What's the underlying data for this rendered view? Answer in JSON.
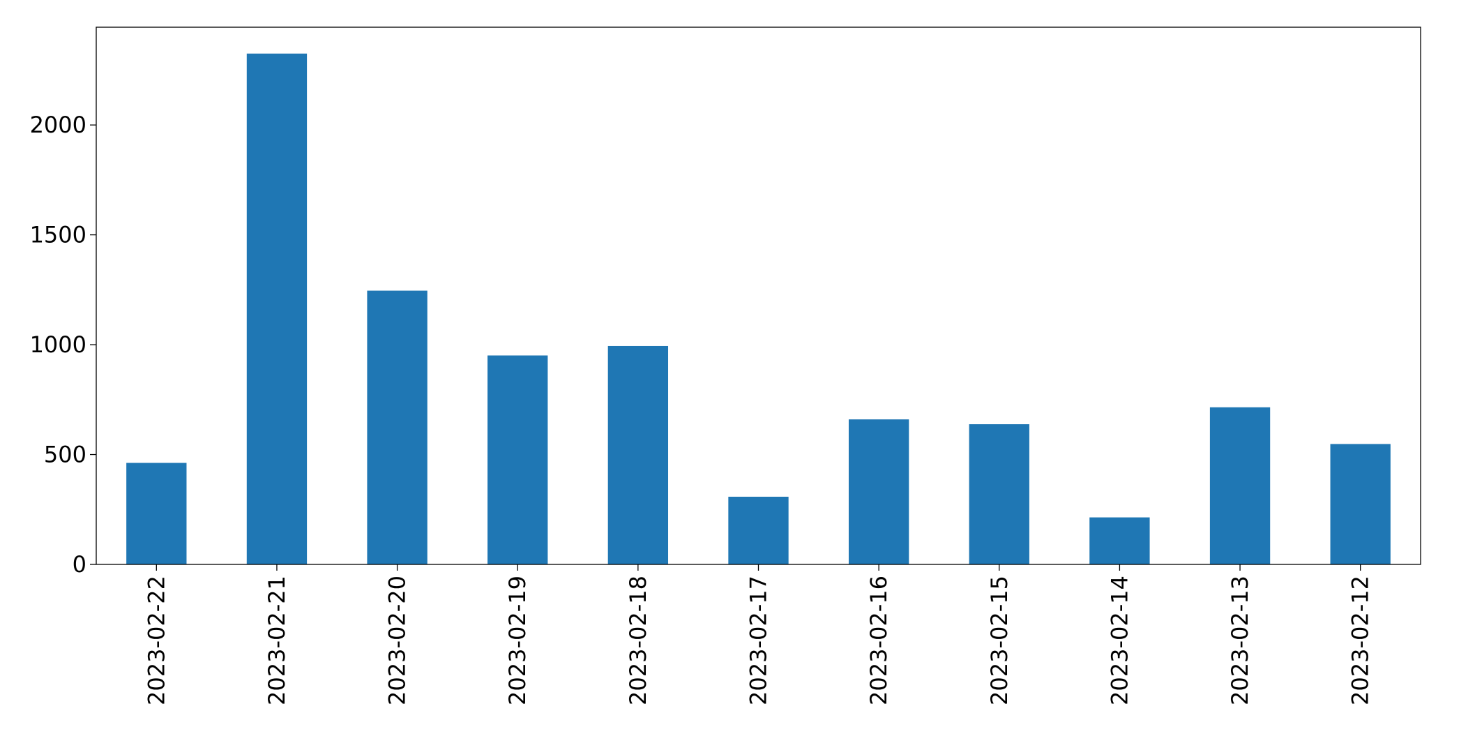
{
  "chart_data": {
    "type": "bar",
    "categories": [
      "2023-02-22",
      "2023-02-21",
      "2023-02-20",
      "2023-02-19",
      "2023-02-18",
      "2023-02-17",
      "2023-02-16",
      "2023-02-15",
      "2023-02-14",
      "2023-02-13",
      "2023-02-12"
    ],
    "values": [
      462,
      2325,
      1246,
      951,
      994,
      308,
      660,
      638,
      214,
      715,
      548
    ],
    "color": "#1f77b4",
    "ylim": [
      0,
      2445
    ],
    "yticks": [
      0,
      500,
      1000,
      1500,
      2000
    ],
    "grid": false
  }
}
